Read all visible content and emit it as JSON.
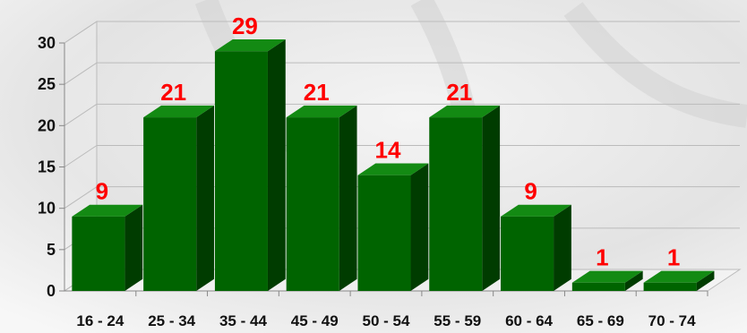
{
  "chart_data": {
    "type": "bar",
    "categories": [
      "16 - 24",
      "25 - 34",
      "35 - 44",
      "45 - 49",
      "50 - 54",
      "55 - 59",
      "60 - 64",
      "65 - 69",
      "70 - 74"
    ],
    "values": [
      9,
      21,
      29,
      21,
      14,
      21,
      9,
      1,
      1
    ],
    "ylim": [
      0,
      30
    ],
    "yticks": [
      0,
      5,
      10,
      15,
      20,
      25,
      30
    ],
    "grid": true,
    "legend": "none",
    "bar_style": "3d",
    "data_labels": true,
    "colors": {
      "bar_front": "#006400",
      "bar_side": "#003c00",
      "bar_top": "#138a13",
      "data_label": "#ff0000",
      "gridline": "#bbbbbb"
    }
  }
}
